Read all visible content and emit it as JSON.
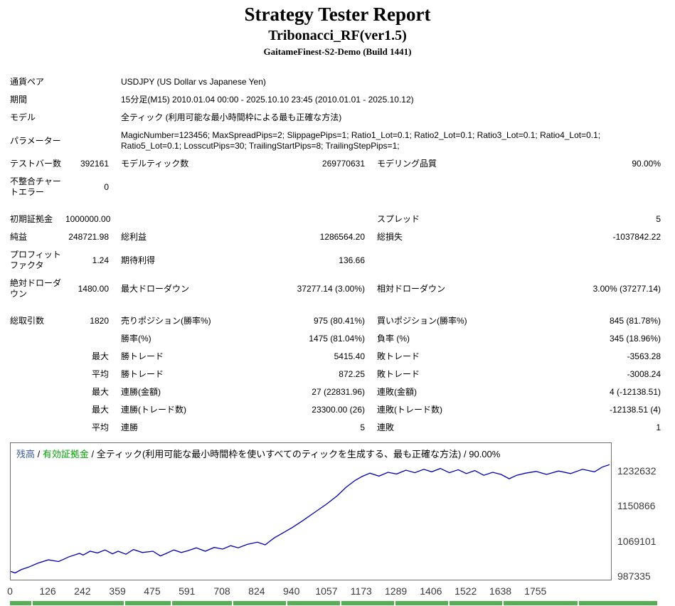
{
  "report": {
    "title": "Strategy Tester Report",
    "ea_name": "Tribonacci_RF(ver1.5)",
    "server": "GaitameFinest-S2-Demo (Build 1441)"
  },
  "summary": {
    "rows": [
      {
        "cells": [
          {
            "t": "通貨ペア",
            "c": "l"
          },
          {
            "t": "USDJPY (US Dollar vs Japanese Yen)",
            "c": "w",
            "s": 5
          }
        ]
      },
      {
        "cells": [
          {
            "t": "期間",
            "c": "l"
          },
          {
            "t": "15分足(M15) 2010.01.04 00:00 - 2025.10.10 23:45 (2010.01.01 - 2025.10.12)",
            "c": "w",
            "s": 5
          }
        ]
      },
      {
        "cells": [
          {
            "t": "モデル",
            "c": "l"
          },
          {
            "t": "全ティック (利用可能な最小時間枠による最も正確な方法)",
            "c": "w",
            "s": 5
          }
        ]
      },
      {
        "cells": [
          {
            "t": "パラメーター",
            "c": "l"
          },
          {
            "t": "MagicNumber=123456; MaxSpreadPips=2; SlippagePips=1; Ratio1_Lot=0.1; Ratio2_Lot=0.1; Ratio3_Lot=0.1; Ratio4_Lot=0.1; Ratio5_Lot=0.1; LosscutPips=30; TrailingStartPips=8; TrailingStepPips=1;",
            "c": "w",
            "s": 5
          }
        ]
      },
      {
        "cells": [
          {
            "t": "テストバー数",
            "c": "l"
          },
          {
            "t": "392161",
            "c": "v"
          },
          {
            "t": "モデルティック数",
            "c": "l i"
          },
          {
            "t": "269770631",
            "c": "v"
          },
          {
            "t": "モデリング品質",
            "c": "l i"
          },
          {
            "t": "90.00%",
            "c": "v"
          }
        ]
      },
      {
        "cells": [
          {
            "t": "不整合チャートエラー",
            "c": "l"
          },
          {
            "t": "0",
            "c": "v"
          },
          {
            "t": "",
            "c": "w",
            "s": 4
          }
        ]
      },
      {
        "gap": true
      },
      {
        "cells": [
          {
            "t": "初期証拠金",
            "c": "l"
          },
          {
            "t": "1000000.00",
            "c": "v"
          },
          {
            "t": "",
            "c": "l i"
          },
          {
            "t": "",
            "c": "v"
          },
          {
            "t": "スプレッド",
            "c": "l i"
          },
          {
            "t": "5",
            "c": "v"
          }
        ]
      },
      {
        "cells": [
          {
            "t": "純益",
            "c": "l"
          },
          {
            "t": "248721.98",
            "c": "v"
          },
          {
            "t": "総利益",
            "c": "l i"
          },
          {
            "t": "1286564.20",
            "c": "v"
          },
          {
            "t": "総損失",
            "c": "l i"
          },
          {
            "t": "-1037842.22",
            "c": "v"
          }
        ]
      },
      {
        "cells": [
          {
            "t": "プロフィットファクタ",
            "c": "l"
          },
          {
            "t": "1.24",
            "c": "v"
          },
          {
            "t": "期待利得",
            "c": "l i"
          },
          {
            "t": "136.66",
            "c": "v"
          },
          {
            "t": "",
            "c": "l i"
          },
          {
            "t": "",
            "c": "v"
          }
        ]
      },
      {
        "cells": [
          {
            "t": "絶対ドローダウン",
            "c": "l"
          },
          {
            "t": "1480.00",
            "c": "v"
          },
          {
            "t": "最大ドローダウン",
            "c": "l i"
          },
          {
            "t": "37277.14 (3.00%)",
            "c": "v"
          },
          {
            "t": "相対ドローダウン",
            "c": "l i"
          },
          {
            "t": "3.00% (37277.14)",
            "c": "v"
          }
        ]
      },
      {
        "gap": true
      },
      {
        "cells": [
          {
            "t": "総取引数",
            "c": "l"
          },
          {
            "t": "1820",
            "c": "v"
          },
          {
            "t": "売りポジション(勝率%)",
            "c": "l i"
          },
          {
            "t": "975 (80.41%)",
            "c": "v"
          },
          {
            "t": "買いポジション(勝率%)",
            "c": "l i"
          },
          {
            "t": "845 (81.78%)",
            "c": "v"
          }
        ]
      },
      {
        "cells": [
          {
            "t": "",
            "c": "l"
          },
          {
            "t": "",
            "c": "v"
          },
          {
            "t": "勝率(%)",
            "c": "l i"
          },
          {
            "t": "1475 (81.04%)",
            "c": "v"
          },
          {
            "t": "負率 (%)",
            "c": "l i"
          },
          {
            "t": "345 (18.96%)",
            "c": "v"
          }
        ]
      },
      {
        "cells": [
          {
            "t": "",
            "c": "l"
          },
          {
            "t": "最大",
            "c": "v"
          },
          {
            "t": "勝トレード",
            "c": "l i"
          },
          {
            "t": "5415.40",
            "c": "v"
          },
          {
            "t": "敗トレード",
            "c": "l i"
          },
          {
            "t": "-3563.28",
            "c": "v"
          }
        ]
      },
      {
        "cells": [
          {
            "t": "",
            "c": "l"
          },
          {
            "t": "平均",
            "c": "v"
          },
          {
            "t": "勝トレード",
            "c": "l i"
          },
          {
            "t": "872.25",
            "c": "v"
          },
          {
            "t": "敗トレード",
            "c": "l i"
          },
          {
            "t": "-3008.24",
            "c": "v"
          }
        ]
      },
      {
        "cells": [
          {
            "t": "",
            "c": "l"
          },
          {
            "t": "最大",
            "c": "v"
          },
          {
            "t": "連勝(金額)",
            "c": "l i"
          },
          {
            "t": "27 (22831.96)",
            "c": "v"
          },
          {
            "t": "連敗(金額)",
            "c": "l i"
          },
          {
            "t": "4 (-12138.51)",
            "c": "v"
          }
        ]
      },
      {
        "cells": [
          {
            "t": "",
            "c": "l"
          },
          {
            "t": "最大",
            "c": "v"
          },
          {
            "t": "連勝(トレード数)",
            "c": "l i"
          },
          {
            "t": "23300.00 (26)",
            "c": "v"
          },
          {
            "t": "連敗(トレード数)",
            "c": "l i"
          },
          {
            "t": "-12138.51 (4)",
            "c": "v"
          }
        ]
      },
      {
        "cells": [
          {
            "t": "",
            "c": "l"
          },
          {
            "t": "平均",
            "c": "v"
          },
          {
            "t": "連勝",
            "c": "l i"
          },
          {
            "t": "5",
            "c": "v"
          },
          {
            "t": "連敗",
            "c": "l i"
          },
          {
            "t": "1",
            "c": "v"
          }
        ]
      }
    ]
  },
  "chart": {
    "legend": {
      "balance": "残高",
      "separator": " / ",
      "equity": "有効証拠金",
      "model": "全ティック(利用可能な最小時間枠を使いすべてのティックを生成する、最も正確な方法)",
      "quality": "90.00%"
    },
    "colors": {
      "balance_line": "#0000b4",
      "balance_label": "#3b5a9a",
      "equity_label": "#00a000",
      "border": "#6e6e6e",
      "axis_text": "#3a3a3a"
    }
  },
  "chart_data": {
    "type": "line",
    "title": "残高 / 有効証拠金 / 全ティック(利用可能な最小時間枠を使いすべてのティックを生成する、最も正確な方法) / 90.00%",
    "xlabel": "",
    "ylabel": "",
    "grid": false,
    "legend_position": "top-left",
    "xlim": [
      0,
      2005
    ],
    "ylim": [
      980700,
      1299000
    ],
    "x_ticks": [
      0,
      126,
      242,
      359,
      475,
      591,
      708,
      824,
      940,
      1057,
      1173,
      1289,
      1406,
      1522,
      1638,
      1755
    ],
    "y_ticks": [
      1232632,
      1150866,
      1069101,
      987335
    ],
    "series": [
      {
        "name": "残高",
        "x": [
          0,
          15,
          35,
          60,
          90,
          126,
          160,
          195,
          230,
          242,
          265,
          290,
          315,
          340,
          359,
          385,
          410,
          440,
          475,
          500,
          520,
          545,
          570,
          591,
          620,
          650,
          680,
          708,
          735,
          760,
          790,
          824,
          850,
          880,
          910,
          940,
          975,
          1010,
          1057,
          1090,
          1120,
          1150,
          1173,
          1200,
          1230,
          1260,
          1289,
          1320,
          1350,
          1380,
          1406,
          1435,
          1465,
          1495,
          1522,
          1550,
          1580,
          1610,
          1638,
          1665,
          1690,
          1720,
          1755,
          1790,
          1830,
          1870,
          1910,
          1950,
          1975,
          2000
        ],
        "y": [
          1000000,
          996500,
          1004000,
          1010000,
          1019000,
          1027000,
          1023000,
          1034000,
          1042000,
          1038000,
          1047000,
          1043000,
          1050000,
          1041000,
          1047000,
          1040000,
          1051000,
          1044000,
          1047000,
          1036000,
          1042000,
          1050000,
          1044000,
          1048000,
          1055000,
          1047000,
          1056000,
          1052000,
          1060000,
          1055000,
          1063000,
          1068000,
          1062000,
          1078000,
          1090000,
          1102000,
          1118000,
          1135000,
          1158000,
          1176000,
          1196000,
          1212000,
          1221000,
          1229000,
          1222000,
          1231000,
          1227000,
          1236000,
          1230000,
          1238000,
          1232000,
          1240000,
          1230000,
          1237000,
          1228000,
          1235000,
          1224000,
          1231000,
          1226000,
          1216000,
          1224000,
          1229000,
          1233000,
          1226000,
          1234000,
          1228000,
          1238000,
          1232000,
          1243000,
          1248722
        ]
      }
    ]
  },
  "bottom_strip": {
    "color": "#55b055",
    "segments": [
      30,
      128,
      64,
      84,
      74,
      74,
      74,
      74,
      74,
      104,
      110
    ]
  }
}
